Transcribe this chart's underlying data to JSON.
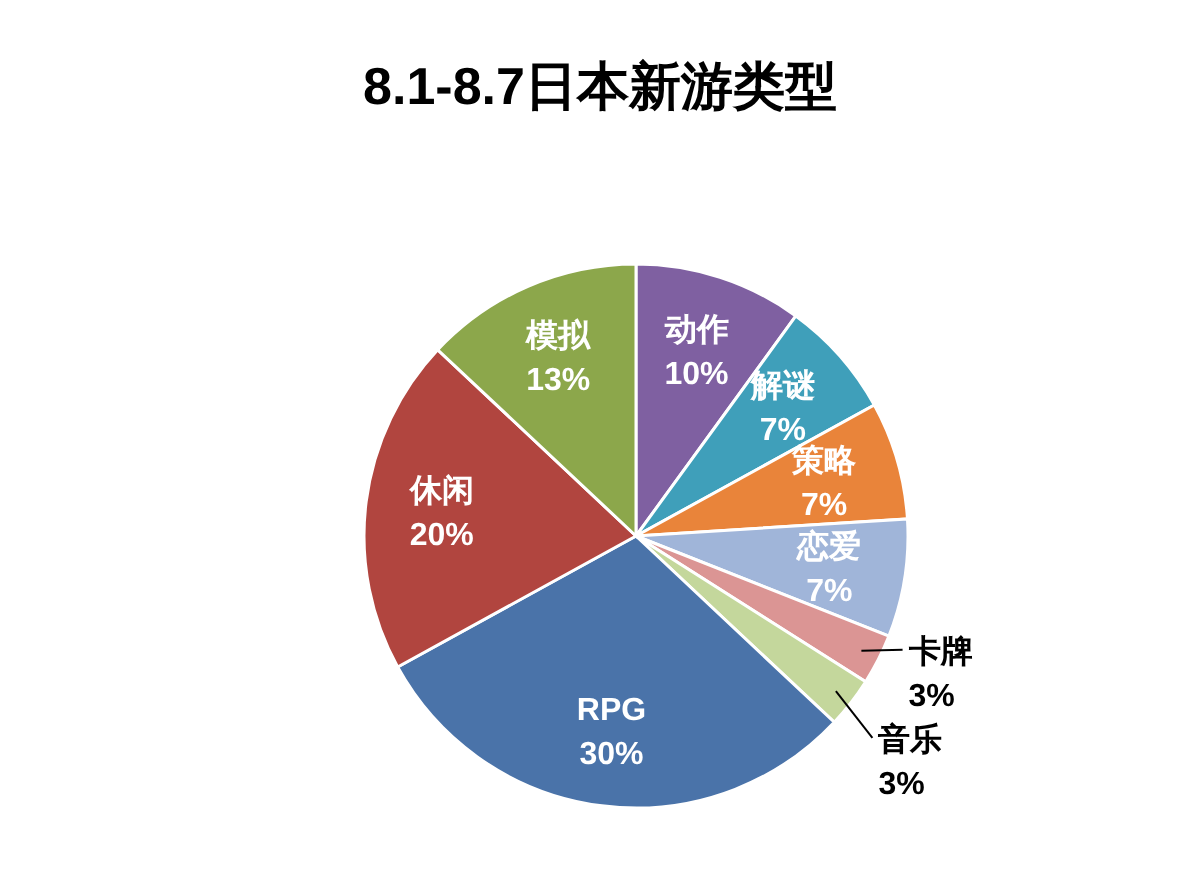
{
  "chart_data": {
    "type": "pie",
    "title": "8.1-8.7日本新游类型",
    "categories": [
      "动作",
      "解谜",
      "策略",
      "恋爱",
      "卡牌",
      "音乐",
      "RPG",
      "休闲",
      "模拟"
    ],
    "values": [
      10,
      7,
      7,
      7,
      3,
      3,
      30,
      20,
      13
    ],
    "value_labels": [
      "10%",
      "7%",
      "7%",
      "7%",
      "3%",
      "3%",
      "30%",
      "20%",
      "13%"
    ],
    "colors": [
      "#7f60a1",
      "#3f9fba",
      "#e9843a",
      "#a0b5d9",
      "#db9594",
      "#c4d79c",
      "#4a73a9",
      "#b1453f",
      "#8ca74b"
    ]
  }
}
